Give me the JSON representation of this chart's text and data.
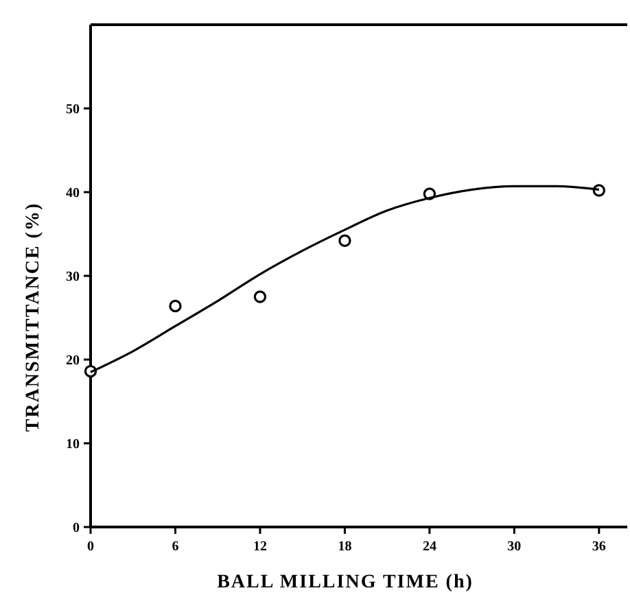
{
  "chart_data": {
    "type": "scatter",
    "xlabel": "BALL MILLING TIME (h)",
    "ylabel": "TRANSMITTANCE (%)",
    "xlim": [
      0,
      38
    ],
    "ylim": [
      0,
      60
    ],
    "xticks": [
      0,
      6,
      12,
      18,
      24,
      30,
      36
    ],
    "yticks": [
      0,
      10,
      20,
      30,
      40,
      50
    ],
    "grid": false,
    "series": [
      {
        "type": "scatter",
        "color": "#000000",
        "marker": "circle",
        "x": [
          0,
          6,
          12,
          18,
          24,
          36
        ],
        "values": [
          18.6,
          26.4,
          27.5,
          34.2,
          39.8,
          40.2
        ]
      },
      {
        "type": "line",
        "color": "#000000",
        "line_style": "solid",
        "x": [
          0,
          3,
          6,
          9,
          12,
          15,
          18,
          21,
          24,
          27,
          30,
          33,
          36
        ],
        "values": [
          18.5,
          21,
          24,
          27,
          30.2,
          33,
          35.5,
          37.8,
          39.3,
          40.3,
          40.7,
          40.7,
          40.3
        ]
      }
    ]
  }
}
